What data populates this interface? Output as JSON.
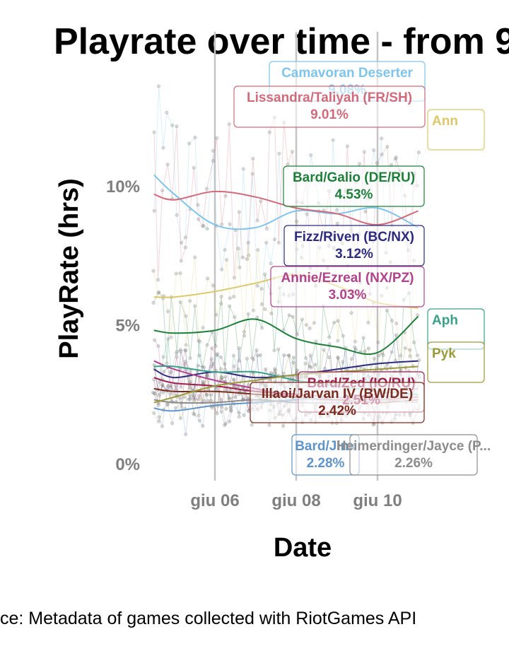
{
  "chart_data": {
    "type": "line",
    "title": "Playrate over time - from 9",
    "xlabel": "Date",
    "ylabel": "PlayRate (hrs)",
    "caption": "ce: Metadata of games collected with RiotGames API",
    "x_ticks": [
      "giu 06",
      "giu 08",
      "giu 10"
    ],
    "y_ticks": [
      {
        "value": 0,
        "label": "0%"
      },
      {
        "value": 5,
        "label": "5%"
      },
      {
        "value": 10,
        "label": "10%"
      }
    ],
    "ylim": [
      -0.6,
      13.9
    ],
    "grid": "vertical only",
    "legend": "none (direct labels)",
    "series": [
      {
        "name": "Camavoran Deserter",
        "value": "9.08%",
        "color": "#7fc4ea",
        "x": [
          "giu 04 12:00",
          "giu 05",
          "giu 06",
          "giu 07",
          "giu 08",
          "giu 09",
          "giu 10",
          "giu 11"
        ],
        "values": [
          10.4,
          9.7,
          8.6,
          8.5,
          9.1,
          9.0,
          9.2,
          8.5
        ]
      },
      {
        "name": "Lissandra/Taliyah (FR/SH)",
        "value": "9.01%",
        "color": "#d16b7b",
        "x": [
          "giu 04 12:00",
          "giu 05",
          "giu 06",
          "giu 07",
          "giu 08",
          "giu 09",
          "giu 10",
          "giu 11"
        ],
        "values": [
          9.7,
          9.5,
          9.8,
          9.6,
          9.2,
          9.0,
          8.6,
          9.1
        ]
      },
      {
        "name": "Bard/Galio (DE/RU)",
        "value": "4.53%",
        "color": "#1e7f3a",
        "x": [
          "giu 04 12:00",
          "giu 05",
          "giu 06",
          "giu 07",
          "giu 08",
          "giu 09",
          "giu 10",
          "giu 11"
        ],
        "values": [
          4.8,
          4.7,
          4.8,
          5.2,
          4.5,
          4.2,
          4.0,
          5.3
        ]
      },
      {
        "name": "Fizz/Riven (BC/NX)",
        "value": "3.12%",
        "color": "#2c2a7d",
        "x": [
          "giu 04 12:00",
          "giu 05",
          "giu 06",
          "giu 07",
          "giu 08",
          "giu 09",
          "giu 10",
          "giu 11"
        ],
        "values": [
          3.4,
          3.1,
          3.3,
          3.1,
          3.2,
          3.4,
          3.6,
          3.7
        ]
      },
      {
        "name": "Annie/Ezreal (NX/PZ)",
        "value": "3.03%",
        "color": "#b0438e",
        "x": [
          "giu 04 12:00",
          "giu 05",
          "giu 06",
          "giu 07",
          "giu 08",
          "giu 09",
          "giu 10",
          "giu 11"
        ],
        "values": [
          3.7,
          3.4,
          3.0,
          2.7,
          2.4,
          2.3,
          2.5,
          2.7
        ]
      },
      {
        "name": "Bard/Zed (IO/RU)",
        "value": "2.51%",
        "color": "#9e1f4f",
        "x": [
          "giu 04 12:00",
          "giu 05",
          "giu 06",
          "giu 07",
          "giu 08",
          "giu 09",
          "giu 10",
          "giu 11"
        ],
        "values": [
          3.1,
          2.9,
          2.8,
          2.6,
          2.5,
          2.4,
          2.3,
          2.4
        ]
      },
      {
        "name": "Illaoi/Jarvan IV (BW/DE)",
        "value": "2.42%",
        "color": "#7a2a1f",
        "x": [
          "giu 04 12:00",
          "giu 05",
          "giu 06",
          "giu 07",
          "giu 08",
          "giu 09",
          "giu 10",
          "giu 11"
        ],
        "values": [
          2.7,
          2.6,
          2.6,
          2.5,
          2.4,
          2.3,
          2.2,
          2.3
        ]
      },
      {
        "name": "Bard/Jinx",
        "value": "2.28%",
        "color": "#5f93c9",
        "x": [
          "giu 04 12:00",
          "giu 05",
          "giu 06",
          "giu 07",
          "giu 08",
          "giu 09",
          "giu 10",
          "giu 11"
        ],
        "values": [
          2.0,
          1.9,
          2.1,
          2.2,
          2.3,
          2.4,
          2.4,
          2.5
        ]
      },
      {
        "name": "Heimerdinger/Jayce (P...",
        "value": "2.26%",
        "color": "#8c8c8c",
        "x": [
          "giu 04 12:00",
          "giu 05",
          "giu 06",
          "giu 07",
          "giu 08",
          "giu 09",
          "giu 10",
          "giu 11"
        ],
        "values": [
          2.3,
          2.2,
          2.2,
          2.3,
          2.2,
          2.2,
          2.3,
          2.2
        ]
      },
      {
        "name": "Ann",
        "value": "",
        "color": "#dcc86a",
        "x": [
          "giu 04 12:00",
          "giu 05",
          "giu 06",
          "giu 07",
          "giu 08",
          "giu 09",
          "giu 10",
          "giu 11"
        ],
        "values": [
          6.0,
          6.0,
          6.2,
          6.5,
          6.8,
          6.4,
          5.8,
          5.6
        ]
      },
      {
        "name": "Aph",
        "value": "",
        "color": "#3aa08a",
        "x": [
          "giu 04 12:00",
          "giu 05",
          "giu 06",
          "giu 07",
          "giu 08",
          "giu 09",
          "giu 10",
          "giu 11"
        ],
        "values": [
          3.5,
          3.5,
          3.3,
          3.3,
          3.0,
          2.8,
          2.6,
          2.5
        ]
      },
      {
        "name": "Pyk",
        "value": "",
        "color": "#9a9a3a",
        "x": [
          "giu 04 12:00",
          "giu 05",
          "giu 06",
          "giu 07",
          "giu 08",
          "giu 09",
          "giu 10",
          "giu 11"
        ],
        "values": [
          2.2,
          2.4,
          2.8,
          3.0,
          3.2,
          3.3,
          3.4,
          3.5
        ]
      }
    ]
  }
}
